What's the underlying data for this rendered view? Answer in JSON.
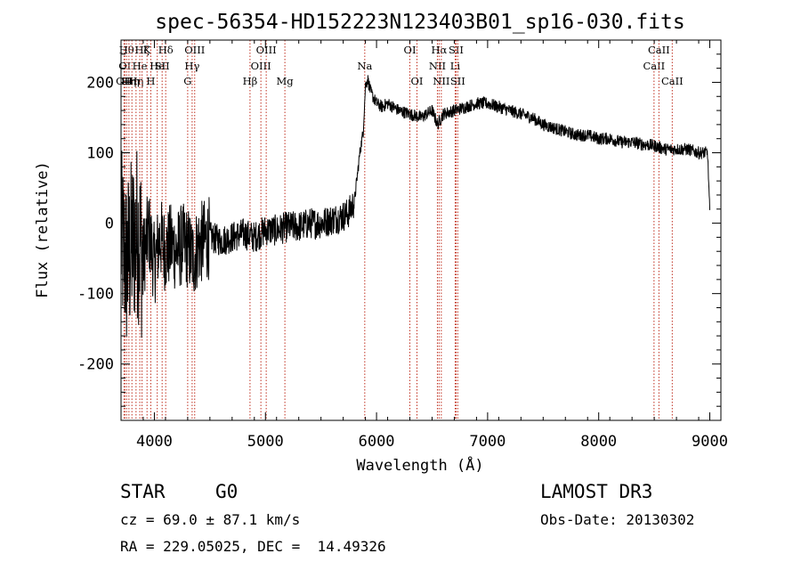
{
  "chart_data": {
    "type": "line",
    "title": "spec-56354-HD152223N123403B01_sp16-030.fits",
    "xlabel": "Wavelength (Å)",
    "ylabel": "Flux (relative)",
    "xlim": [
      3700,
      9100
    ],
    "ylim": [
      -280,
      260
    ],
    "xticks": [
      4000,
      5000,
      6000,
      7000,
      8000,
      9000
    ],
    "yticks": [
      -200,
      -100,
      0,
      100,
      200
    ],
    "grid": false,
    "series": [
      {
        "name": "flux",
        "x": [
          3700,
          3750,
          3800,
          3850,
          3900,
          3950,
          4000,
          4050,
          4100,
          4150,
          4200,
          4250,
          4300,
          4350,
          4400,
          4500,
          4600,
          4700,
          4800,
          4900,
          5000,
          5100,
          5200,
          5300,
          5400,
          5500,
          5600,
          5700,
          5750,
          5800,
          5850,
          5880,
          5900,
          5920,
          5950,
          6000,
          6050,
          6100,
          6200,
          6300,
          6400,
          6500,
          6550,
          6600,
          6700,
          6800,
          6900,
          7000,
          7100,
          7200,
          7300,
          7400,
          7500,
          7600,
          7700,
          7800,
          7900,
          8000,
          8100,
          8200,
          8300,
          8400,
          8500,
          8600,
          8700,
          8800,
          8900,
          8980,
          9000
        ],
        "y": [
          -20,
          -60,
          -30,
          -10,
          -50,
          -10,
          -60,
          -20,
          -40,
          -30,
          -40,
          -30,
          -35,
          -50,
          -30,
          -20,
          -25,
          -20,
          -15,
          -20,
          -10,
          -10,
          -5,
          -5,
          0,
          0,
          5,
          10,
          15,
          30,
          100,
          130,
          195,
          205,
          185,
          170,
          165,
          170,
          160,
          155,
          150,
          160,
          140,
          155,
          160,
          165,
          170,
          170,
          165,
          160,
          155,
          150,
          140,
          135,
          130,
          125,
          125,
          120,
          120,
          115,
          115,
          112,
          110,
          105,
          105,
          105,
          100,
          100,
          15
        ]
      }
    ],
    "lines": [
      {
        "wl": 3727,
        "label": "OII",
        "row": 2
      },
      {
        "wl": 3734,
        "label": "OI",
        "row": 1
      },
      {
        "wl": 3750,
        "label": "Hθ",
        "row": 0
      },
      {
        "wl": 3771,
        "label": "Hη",
        "row": 2
      },
      {
        "wl": 3798,
        "label": "Hη",
        "row": 2
      },
      {
        "wl": 3835,
        "label": "Hη",
        "row": 2
      },
      {
        "wl": 3869,
        "label": "He",
        "row": 1
      },
      {
        "wl": 3889,
        "label": "Hζ",
        "row": 0
      },
      {
        "wl": 3934,
        "label": "K",
        "row": 0
      },
      {
        "wl": 3968,
        "label": "H",
        "row": 2
      },
      {
        "wl": 4026,
        "label": "He",
        "row": 1
      },
      {
        "wl": 4070,
        "label": "SII",
        "row": 1
      },
      {
        "wl": 4102,
        "label": "Hδ",
        "row": 0
      },
      {
        "wl": 4300,
        "label": "G",
        "row": 2
      },
      {
        "wl": 4340,
        "label": "Hγ",
        "row": 1
      },
      {
        "wl": 4363,
        "label": "OIII",
        "row": 0
      },
      {
        "wl": 4861,
        "label": "Hβ",
        "row": 2
      },
      {
        "wl": 4959,
        "label": "OIII",
        "row": 1
      },
      {
        "wl": 5007,
        "label": "OIII",
        "row": 0
      },
      {
        "wl": 5175,
        "label": "Mg",
        "row": 2
      },
      {
        "wl": 5894,
        "label": "Na",
        "row": 1
      },
      {
        "wl": 6300,
        "label": "OI",
        "row": 0
      },
      {
        "wl": 6364,
        "label": "OI",
        "row": 2
      },
      {
        "wl": 6548,
        "label": "NII",
        "row": 1
      },
      {
        "wl": 6563,
        "label": "Hα",
        "row": 0
      },
      {
        "wl": 6583,
        "label": "NII",
        "row": 2
      },
      {
        "wl": 6708,
        "label": "Li",
        "row": 1
      },
      {
        "wl": 6716,
        "label": "SII",
        "row": 0
      },
      {
        "wl": 6731,
        "label": "SII",
        "row": 2
      },
      {
        "wl": 8498,
        "label": "CaII",
        "row": 1
      },
      {
        "wl": 8542,
        "label": "CaII",
        "row": 0
      },
      {
        "wl": 8662,
        "label": "CaII",
        "row": 2
      }
    ]
  },
  "info": {
    "object_class": "STAR",
    "subclass": "G0",
    "survey": "LAMOST DR3",
    "cz": "cz = 69.0 ± 87.1 km/s",
    "obs_date": "Obs-Date: 20130302",
    "coords": "RA = 229.05025, DEC =  14.49326"
  }
}
